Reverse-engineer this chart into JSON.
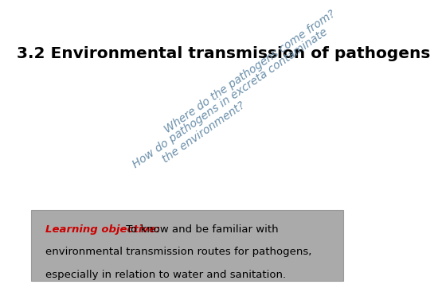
{
  "title": "3.2 Environmental transmission of pathogens",
  "title_bg_color": "#F5D778",
  "title_fontsize": 14.5,
  "title_color": "#000000",
  "question1": "Where do the pathogens come from?",
  "question2": "How do pathogens in excreta contaminate\n        the environment?",
  "question_color": "#6B8FAA",
  "question_fontsize": 10,
  "question_rotation": 35,
  "learning_label": "Learning objective:",
  "learning_rest": " To know and be familiar with\nenvironmental transmission routes for pathogens,\nespecially in relation to water and sanitation.",
  "learning_label_color": "#CC0000",
  "learning_text_color": "#000000",
  "learning_fontsize": 9.5,
  "learning_box_color": "#AAAAAA",
  "bg_color": "#FFFFFF"
}
